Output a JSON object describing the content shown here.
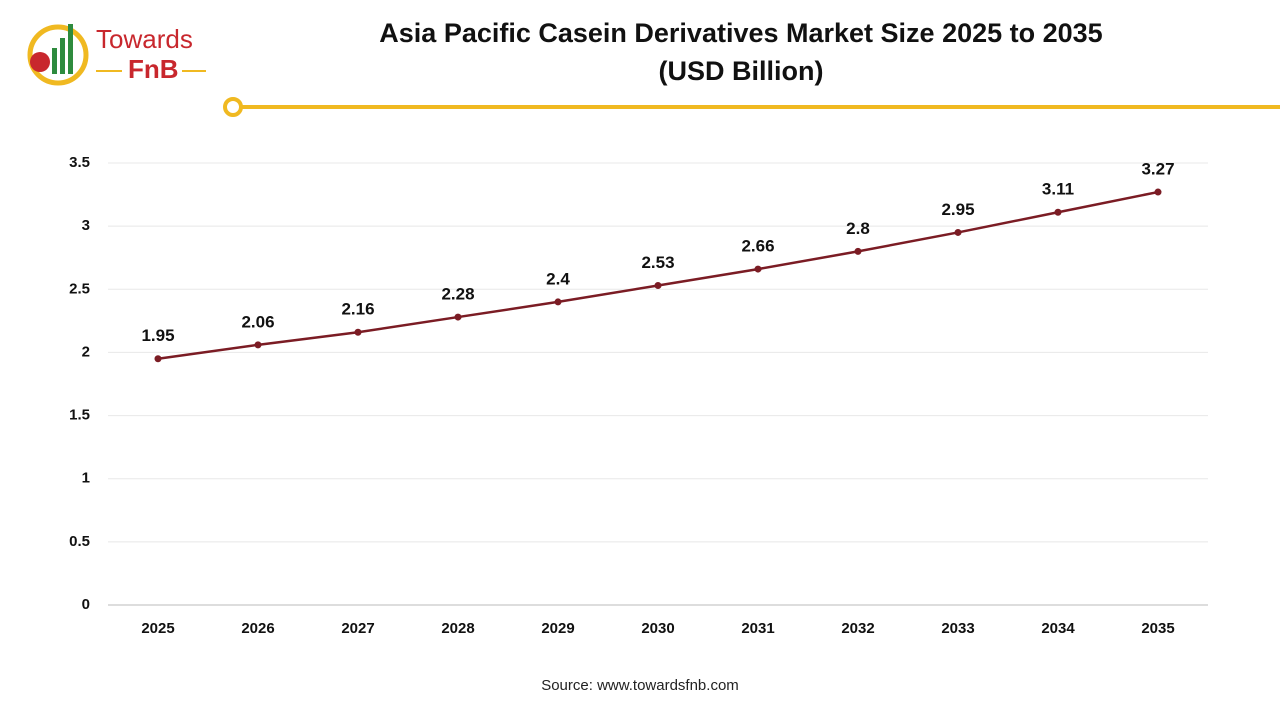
{
  "logo": {
    "name": "Towards",
    "brand": "FnB"
  },
  "chart_data": {
    "type": "line",
    "title": "Asia Pacific Casein Derivatives Market Size 2025 to 2035",
    "subtitle": "(USD Billion)",
    "categories": [
      "2025",
      "2026",
      "2027",
      "2028",
      "2029",
      "2030",
      "2031",
      "2032",
      "2033",
      "2034",
      "2035"
    ],
    "values": [
      1.95,
      2.06,
      2.16,
      2.28,
      2.4,
      2.53,
      2.66,
      2.8,
      2.95,
      3.11,
      3.27
    ],
    "color": "#7b1c24",
    "ylim": [
      0,
      3.5
    ],
    "yticks": [
      0,
      0.5,
      1,
      1.5,
      2,
      2.5,
      3,
      3.5
    ],
    "grid": true,
    "source": "Source: www.towardsfnb.com"
  }
}
